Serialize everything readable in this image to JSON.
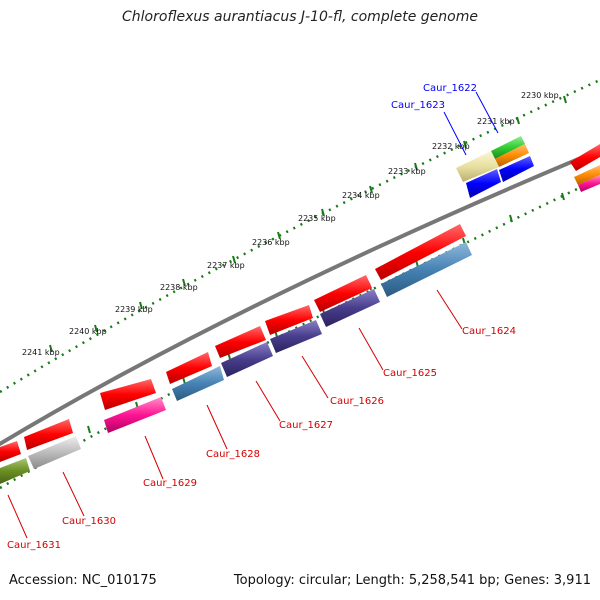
{
  "title": "Chloroflexus aurantiacus J-10-fl, complete genome",
  "footer": {
    "accession": "Accession: NC_010175",
    "summary": "Topology: circular; Length: 5,258,541 bp; Genes: 3,911"
  },
  "ruler_labels": [
    "2230 kbp",
    "2231 kbp",
    "2232 kbp",
    "2233 kbp",
    "2234 kbp",
    "2235 kbp",
    "2236 kbp",
    "2237 kbp",
    "2238 kbp",
    "2239 kbp",
    "2240 kbp",
    "2241 kbp"
  ],
  "gene_labels": {
    "caur_1622": "Caur_1622",
    "caur_1623": "Caur_1623",
    "caur_1624": "Caur_1624",
    "caur_1625": "Caur_1625",
    "caur_1626": "Caur_1626",
    "caur_1627": "Caur_1627",
    "caur_1628": "Caur_1628",
    "caur_1629": "Caur_1629",
    "caur_1630": "Caur_1630",
    "caur_1631": "Caur_1631"
  },
  "colors": {
    "forward_strand": "#ff0000",
    "steelblue": "#4682b4",
    "darkslateblue": "#483d8b",
    "magenta": "#ff1493",
    "blue": "#0000ff",
    "khaki": "#e8e0a0",
    "green": "#32cd32",
    "orange": "#ff8c00",
    "olive": "#6b8e23",
    "gray": "#bcbcbc",
    "ruler": "#1a7a1a",
    "backbone": "#777777",
    "label_red": "#d40000",
    "label_blue": "#0000ff"
  }
}
